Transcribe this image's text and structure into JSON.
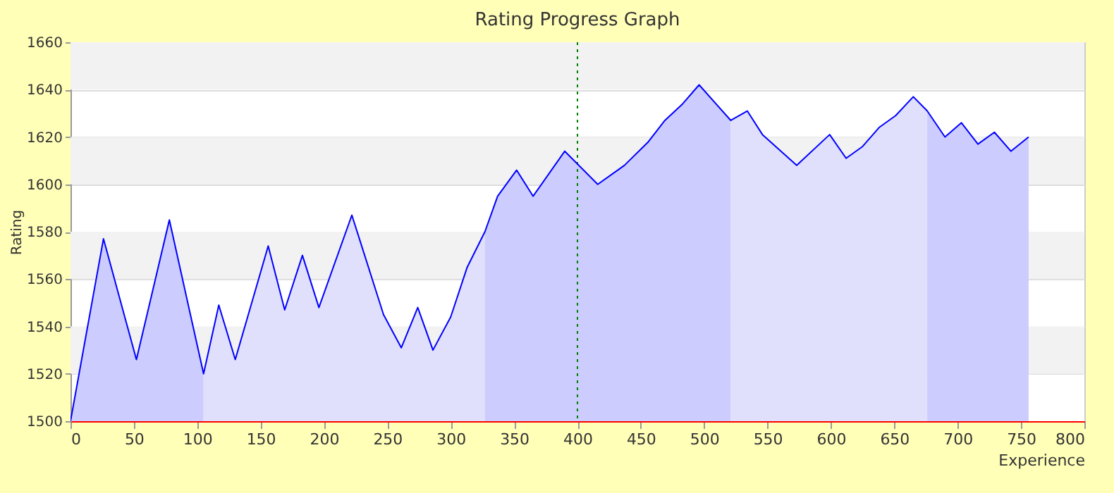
{
  "chart_data": {
    "type": "area",
    "title": "Rating Progress Graph",
    "xlabel": "Experience",
    "ylabel": "Rating",
    "xlim": [
      0,
      800
    ],
    "xticks": [
      0,
      50,
      100,
      150,
      200,
      250,
      300,
      350,
      400,
      450,
      500,
      550,
      600,
      650,
      700,
      750,
      800
    ],
    "ylim": [
      1500,
      1660
    ],
    "yticks": [
      1500,
      1520,
      1540,
      1560,
      1580,
      1600,
      1620,
      1640,
      1660
    ],
    "grid": "y",
    "legend": false,
    "bands": [
      {
        "axis": "y",
        "from": 1520,
        "to": 1540,
        "color": "#f2f2f2"
      },
      {
        "axis": "y",
        "from": 1560,
        "to": 1580,
        "color": "#f2f2f2"
      },
      {
        "axis": "y",
        "from": 1600,
        "to": 1620,
        "color": "#f2f2f2"
      },
      {
        "axis": "y",
        "from": 1640,
        "to": 1660,
        "color": "#f2f2f2"
      }
    ],
    "ref_lines": [
      {
        "axis": "x",
        "value": 400,
        "color": "#008000",
        "line_style": "dotted"
      }
    ],
    "series": [
      {
        "color": "#ccccff",
        "x": [
          0,
          26,
          52,
          78,
          105
        ],
        "values": [
          1500,
          1577,
          1526,
          1585,
          1520
        ]
      },
      {
        "color": "#e0e0fc",
        "x": [
          105,
          117,
          130,
          156,
          169,
          183,
          196,
          222,
          247,
          261,
          274,
          286,
          300,
          313,
          327
        ],
        "values": [
          1520,
          1549,
          1526,
          1574,
          1547,
          1570,
          1548,
          1587,
          1545,
          1531,
          1548,
          1530,
          1544,
          1565,
          1580
        ]
      },
      {
        "color": "#ccccff",
        "x": [
          327,
          337,
          352,
          365,
          390,
          416,
          437,
          456,
          469,
          483,
          496,
          521
        ],
        "values": [
          1580,
          1595,
          1606,
          1595,
          1614,
          1600,
          1608,
          1618,
          1627,
          1634,
          1642,
          1627
        ]
      },
      {
        "color": "#e0e0fc",
        "x": [
          521,
          534,
          546,
          573,
          599,
          612,
          625,
          638,
          651,
          665,
          676
        ],
        "values": [
          1627,
          1631,
          1621,
          1608,
          1621,
          1611,
          1616,
          1624,
          1629,
          1637,
          1631
        ]
      },
      {
        "color": "#ccccff",
        "x": [
          676,
          690,
          703,
          716,
          729,
          742,
          756
        ],
        "values": [
          1631,
          1620,
          1626,
          1617,
          1622,
          1614,
          1620
        ]
      },
      {
        "type": "line",
        "color": "#0000ff",
        "line_style": "solid",
        "marker": "none",
        "x": [
          0,
          26,
          52,
          78,
          105,
          117,
          130,
          156,
          169,
          183,
          196,
          222,
          247,
          261,
          274,
          286,
          300,
          313,
          327,
          337,
          352,
          365,
          390,
          416,
          437,
          456,
          469,
          483,
          496,
          521,
          534,
          546,
          573,
          599,
          612,
          625,
          638,
          651,
          665,
          676,
          690,
          703,
          716,
          729,
          742,
          756
        ],
        "values": [
          1500,
          1577,
          1526,
          1585,
          1520,
          1549,
          1526,
          1574,
          1547,
          1570,
          1548,
          1587,
          1545,
          1531,
          1548,
          1530,
          1544,
          1565,
          1580,
          1595,
          1606,
          1595,
          1614,
          1600,
          1608,
          1618,
          1627,
          1634,
          1642,
          1627,
          1631,
          1621,
          1608,
          1621,
          1611,
          1616,
          1624,
          1629,
          1637,
          1631,
          1620,
          1626,
          1617,
          1622,
          1614,
          1620
        ]
      }
    ]
  }
}
